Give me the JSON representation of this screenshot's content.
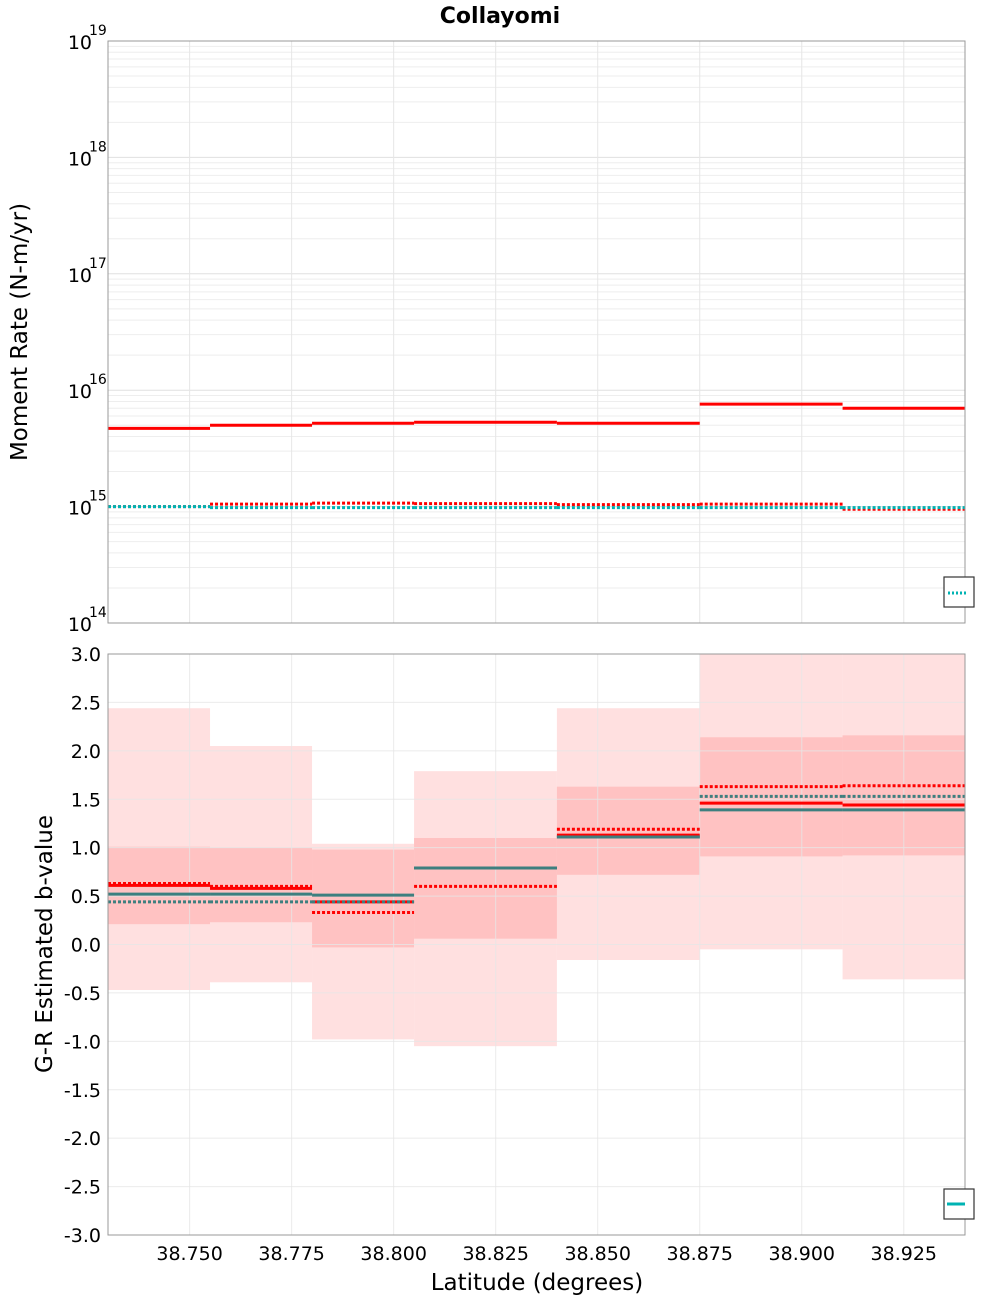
{
  "chart_data": {
    "title": "Collayomi",
    "xlabel": "Latitude (degrees)",
    "xlim": [
      38.73,
      38.94
    ],
    "x_ticks": [
      "38.750",
      "38.775",
      "38.800",
      "38.825",
      "38.850",
      "38.875",
      "38.900",
      "38.925"
    ],
    "x_tick_values": [
      38.75,
      38.775,
      38.8,
      38.825,
      38.85,
      38.875,
      38.9,
      38.925
    ],
    "bin_edges": [
      38.73,
      38.755,
      38.78,
      38.805,
      38.84,
      38.875,
      38.91,
      38.94
    ],
    "colors": {
      "red": "#ff0000",
      "teal": "#00b3b3",
      "dark_teal": "#3d7f7f",
      "band_inner": "#ffc2c2",
      "band_outer": "#ffe0e0",
      "grid": "#e6e6e6"
    },
    "panels": [
      {
        "type": "line",
        "subtype": "step",
        "ylabel": "Moment Rate (N-m/yr)",
        "yscale": "log",
        "ylim": [
          100000000000000.0,
          1e+19
        ],
        "y_tick_exponents": [
          14,
          15,
          16,
          17,
          18,
          19
        ],
        "series": [
          {
            "style": "solid",
            "color": "#ff0000",
            "values": [
              4700000000000000.0,
              5000000000000000.0,
              5200000000000000.0,
              5300000000000000.0,
              5200000000000000.0,
              7600000000000000.0,
              7000000000000000.0
            ]
          },
          {
            "style": "dotted",
            "color": "#ff0000",
            "values": [
              1000000000000000.0,
              1050000000000000.0,
              1070000000000000.0,
              1060000000000000.0,
              1040000000000000.0,
              1050000000000000.0,
              950000000000000.0
            ]
          },
          {
            "style": "dotted",
            "color": "#00b3b3",
            "values": [
              1000000000000000.0,
              980000000000000.0,
              980000000000000.0,
              980000000000000.0,
              980000000000000.0,
              980000000000000.0,
              980000000000000.0
            ]
          }
        ],
        "legend": "bottom-right"
      },
      {
        "type": "line",
        "subtype": "step",
        "ylabel": "G-R Estimated b-value",
        "yscale": "linear",
        "ylim": [
          -3.0,
          3.0
        ],
        "y_ticks": [
          "3.0",
          "2.5",
          "2.0",
          "1.5",
          "1.0",
          "0.5",
          "0.0",
          "-0.5",
          "-1.0",
          "-1.5",
          "-2.0",
          "-2.5",
          "-3.0"
        ],
        "y_tick_values": [
          3.0,
          2.5,
          2.0,
          1.5,
          1.0,
          0.5,
          0.0,
          -0.5,
          -1.0,
          -1.5,
          -2.0,
          -2.5,
          -3.0
        ],
        "outer_band": {
          "lower": [
            -0.47,
            -0.39,
            -0.98,
            -1.05,
            -0.16,
            -0.05,
            -0.36
          ],
          "upper": [
            2.44,
            2.05,
            1.04,
            1.79,
            2.44,
            3.0,
            3.0
          ]
        },
        "inner_band": {
          "lower": [
            0.21,
            0.23,
            -0.03,
            0.06,
            0.72,
            0.91,
            0.92
          ],
          "upper": [
            1.01,
            1.0,
            0.98,
            1.1,
            1.63,
            2.14,
            2.16
          ]
        },
        "series": [
          {
            "style": "solid",
            "color": "#ff0000",
            "values": [
              0.61,
              0.58,
              0.44,
              0.79,
              1.13,
              1.46,
              1.44
            ]
          },
          {
            "style": "dotted",
            "color": "#ff0000",
            "values": [
              0.63,
              0.6,
              0.33,
              0.6,
              1.19,
              1.63,
              1.64
            ]
          },
          {
            "style": "solid",
            "color": "#3d7f7f",
            "values": [
              0.52,
              0.52,
              0.51,
              0.79,
              1.11,
              1.39,
              1.39
            ]
          },
          {
            "style": "dotted",
            "color": "#3d7f7f",
            "values": [
              0.44,
              0.44,
              0.44,
              0.79,
              1.11,
              1.53,
              1.53
            ]
          }
        ],
        "legend": "bottom-right"
      }
    ]
  }
}
